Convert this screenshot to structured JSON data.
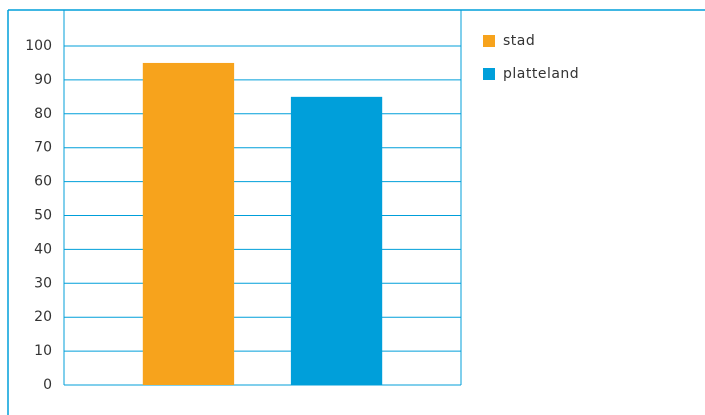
{
  "chart_data": {
    "type": "bar",
    "categories": [
      null
    ],
    "series": [
      {
        "name": "stad",
        "color": "#f7a31c",
        "values": [
          95
        ]
      },
      {
        "name": "platteland",
        "color": "#009fda",
        "values": [
          85
        ]
      }
    ],
    "ylim": [
      0,
      100
    ],
    "yticks": [
      0,
      10,
      20,
      30,
      40,
      50,
      60,
      70,
      80,
      90,
      100
    ],
    "grid": true,
    "legend": "right"
  }
}
